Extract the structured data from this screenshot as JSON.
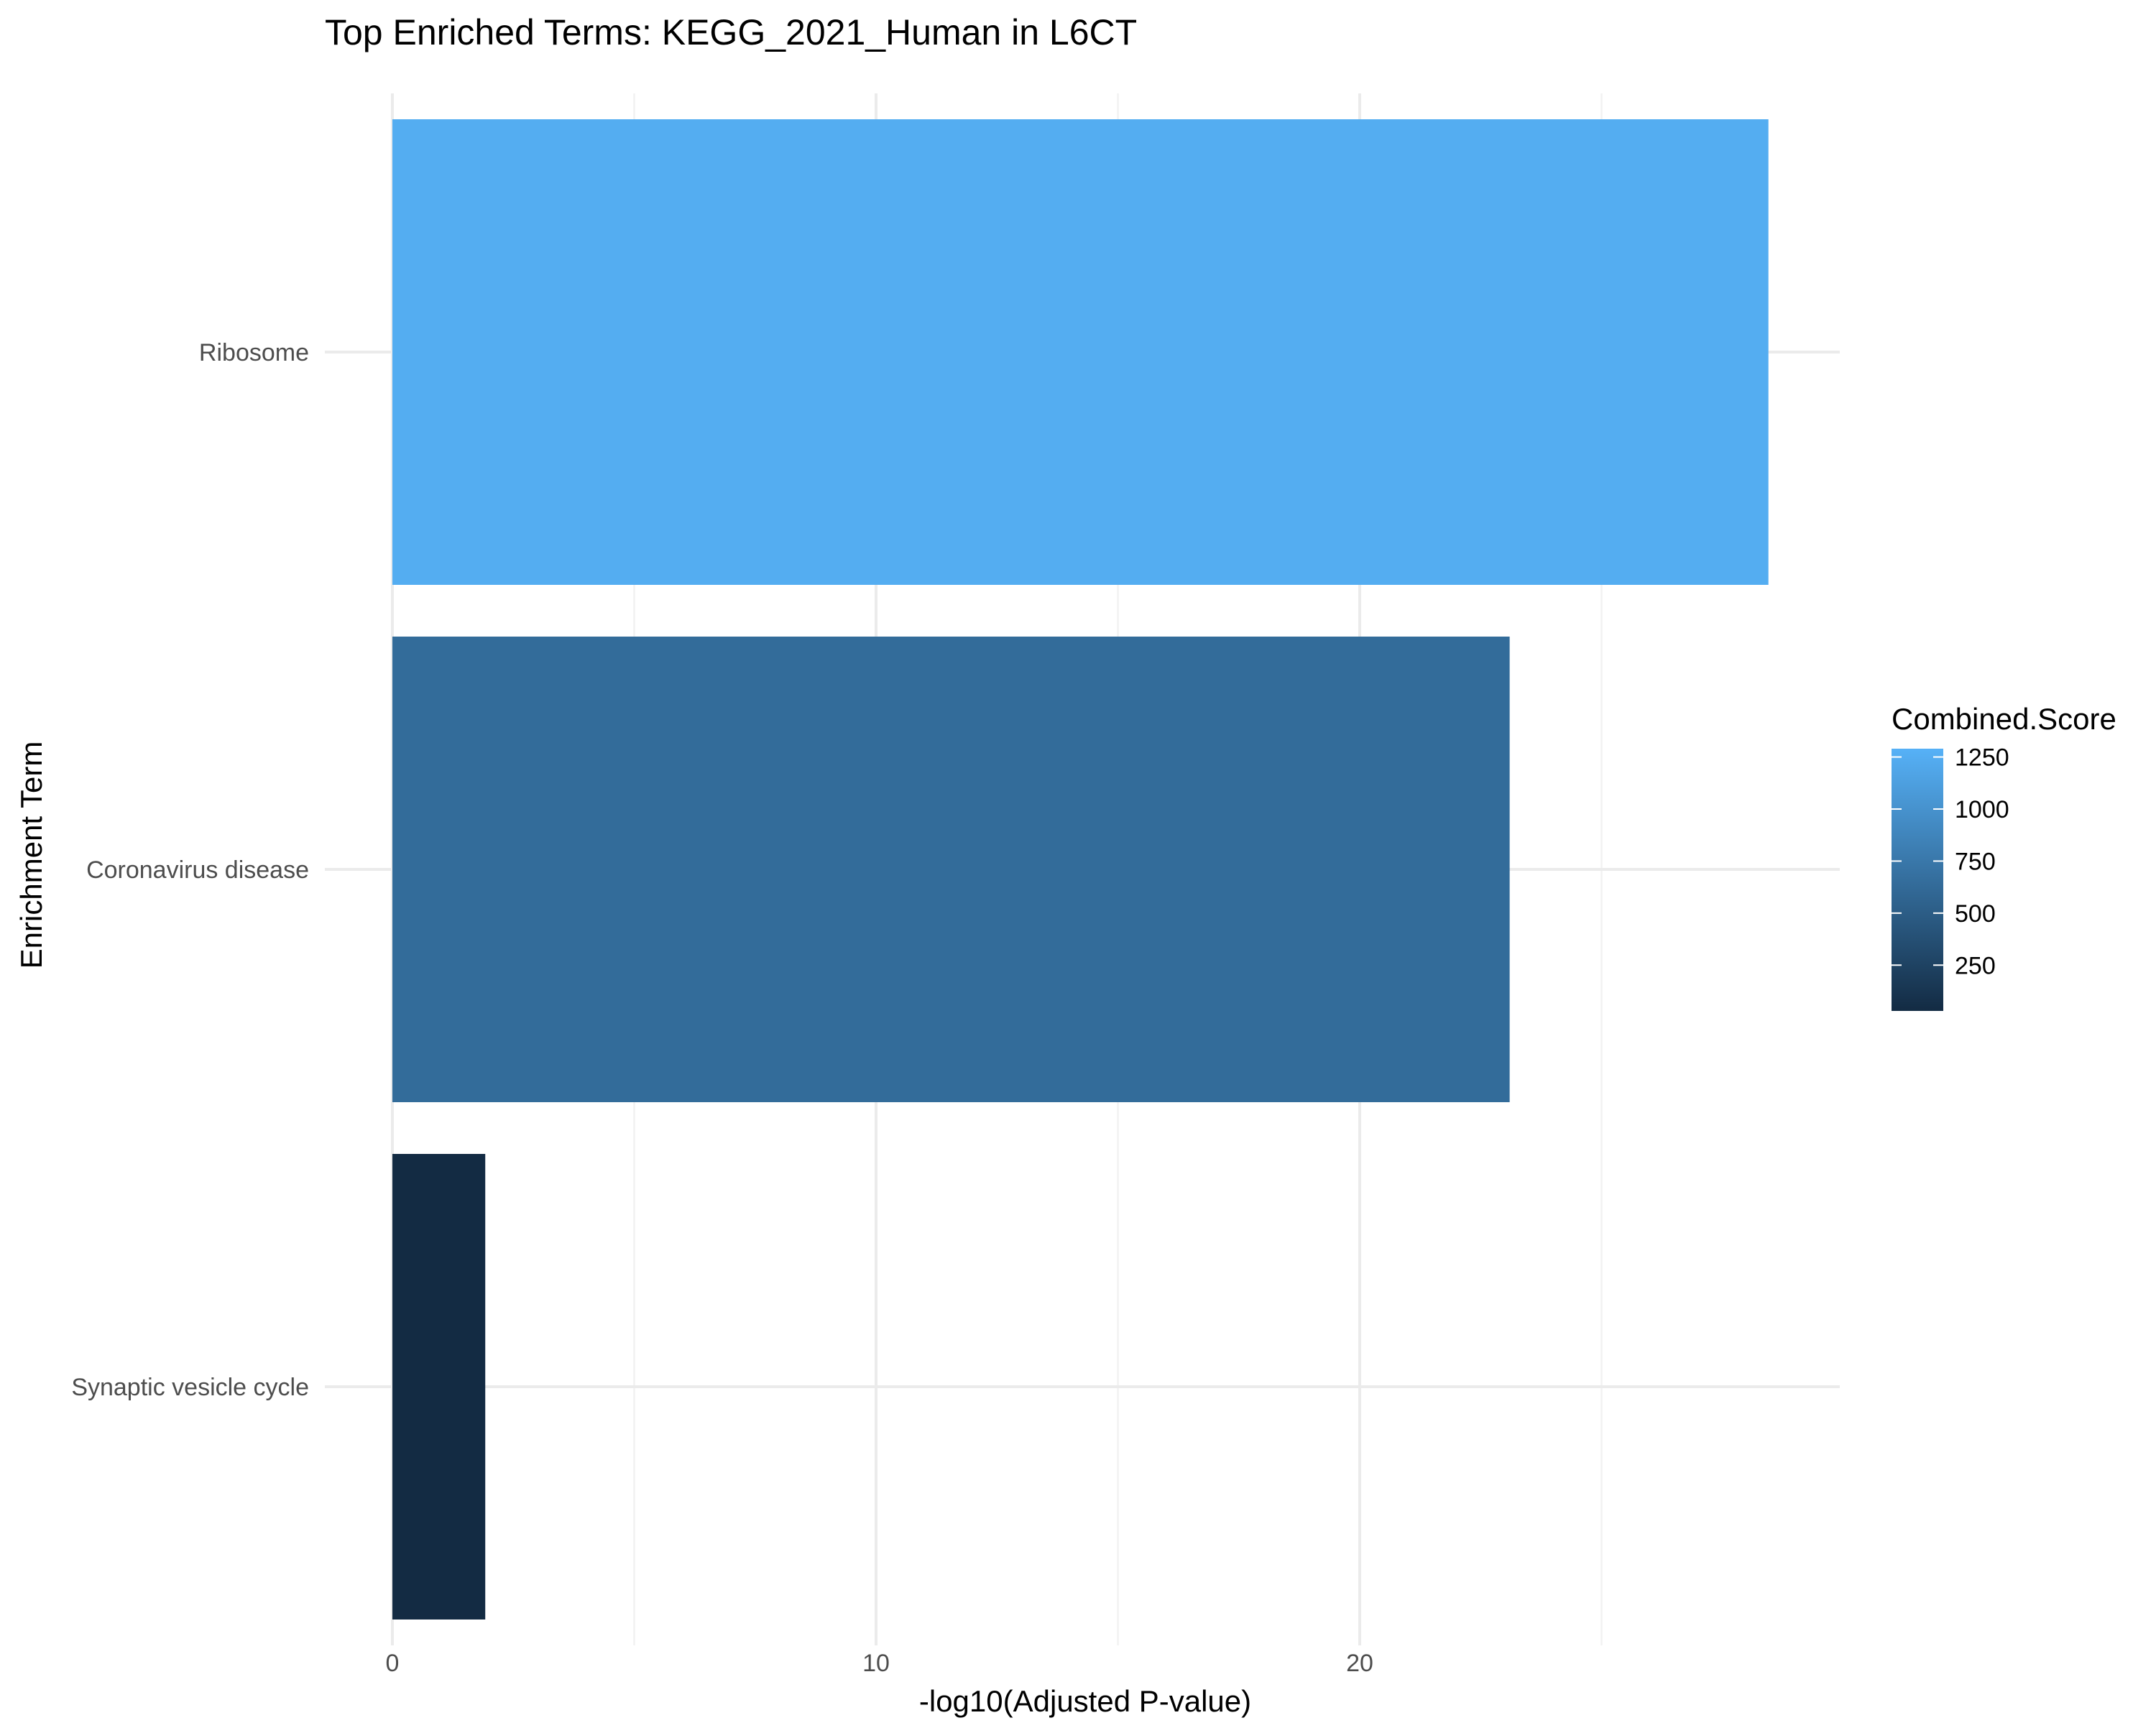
{
  "chart_data": {
    "type": "bar",
    "orientation": "horizontal",
    "title": "Top Enriched Terms: KEGG_2021_Human in L6CT",
    "xlabel": "-log10(Adjusted P-value)",
    "ylabel": "Enrichment Term",
    "categories": [
      "Ribosome",
      "Coronavirus disease",
      "Synaptic vesicle cycle"
    ],
    "values": [
      28.45,
      23.1,
      1.92
    ],
    "fill_values": [
      1250,
      640,
      30
    ],
    "xlim": [
      0,
      30
    ],
    "xticks": [
      0,
      10,
      20
    ],
    "xtick_labels": [
      "0",
      "10",
      "20"
    ],
    "grid": true,
    "legend": {
      "title": "Combined.Score",
      "placement": "right",
      "ticks": [
        250,
        500,
        750,
        1000,
        1250
      ],
      "tick_labels": [
        "250",
        "500",
        "750",
        "1000",
        "1250"
      ],
      "range": [
        30,
        1290
      ],
      "color_low": "#132B43",
      "color_high": "#56B1F7"
    }
  }
}
